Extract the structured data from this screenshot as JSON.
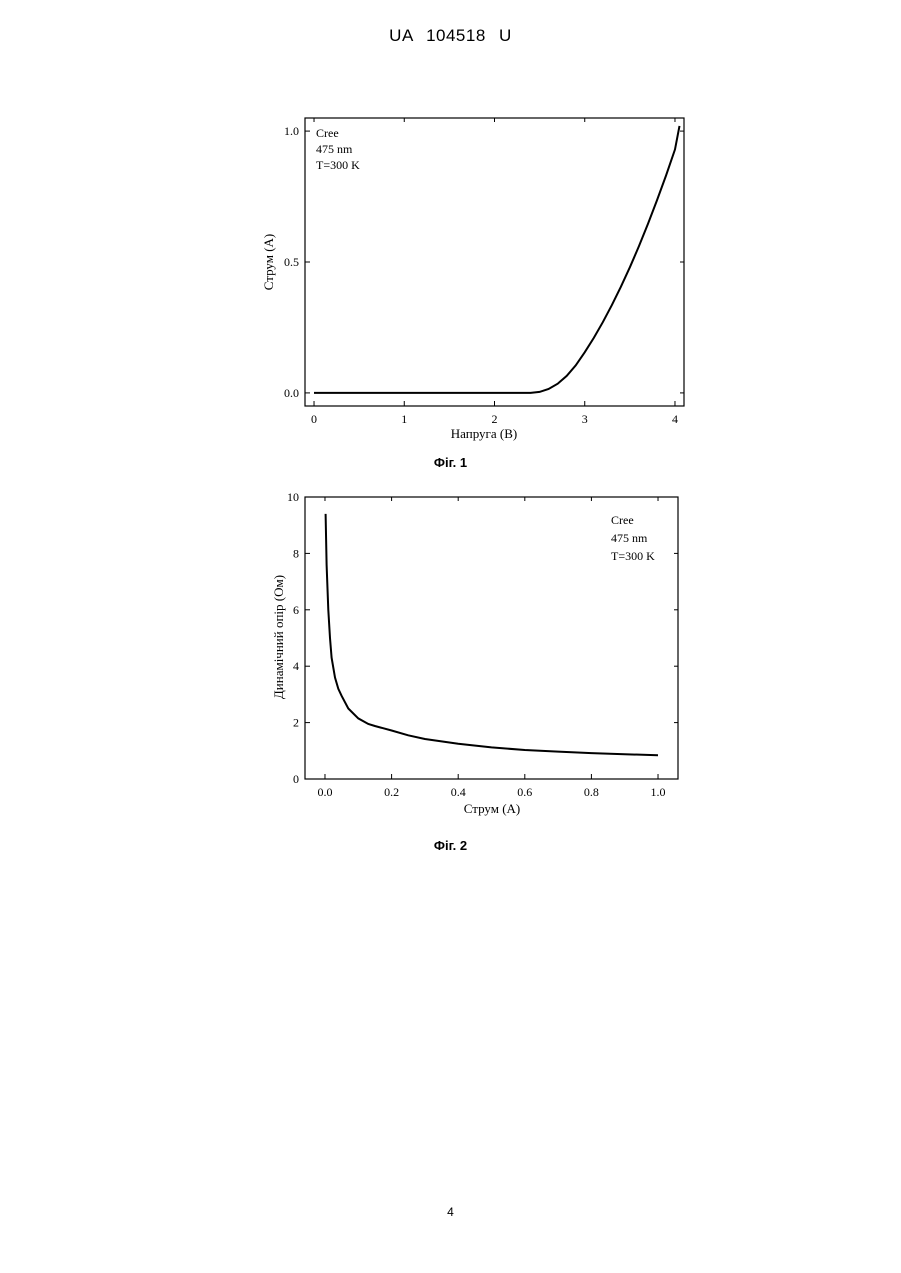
{
  "header": {
    "doc_number": "UA   104518   U"
  },
  "page_number": "4",
  "chart_data": [
    {
      "type": "line",
      "caption": "Фіг. 1",
      "xlabel": "Напруга (В)",
      "ylabel": "Струм (А)",
      "legend": [
        "Cree",
        "475 nm",
        "T=300 K"
      ],
      "legend_placement": "top-left",
      "xlim": [
        -0.1,
        4.1
      ],
      "ylim": [
        -0.05,
        1.05
      ],
      "x_ticks": [
        "0",
        "1",
        "2",
        "3",
        "4"
      ],
      "y_ticks": [
        "0.0",
        "0.5",
        "1.0"
      ],
      "grid": false,
      "series": [
        {
          "x": [
            0.0,
            0.5,
            1.0,
            1.5,
            2.0,
            2.4,
            2.5,
            2.6,
            2.7,
            2.8,
            2.9,
            3.0,
            3.1,
            3.2,
            3.3,
            3.4,
            3.5,
            3.6,
            3.7,
            3.8,
            3.9,
            4.0,
            4.05
          ],
          "values": [
            0.0,
            0.0,
            0.0,
            0.0,
            0.0,
            0.0,
            0.004,
            0.015,
            0.035,
            0.065,
            0.105,
            0.155,
            0.21,
            0.27,
            0.335,
            0.405,
            0.48,
            0.56,
            0.645,
            0.735,
            0.83,
            0.93,
            1.02
          ]
        }
      ]
    },
    {
      "type": "line",
      "caption": "Фіг. 2",
      "xlabel": "Струм (А)",
      "ylabel": "Динамічний опір (Ом)",
      "legend": [
        "Cree",
        "475 nm",
        "T=300 K"
      ],
      "legend_placement": "top-right",
      "xlim": [
        -0.06,
        1.06
      ],
      "ylim": [
        0,
        10
      ],
      "x_ticks": [
        "0.0",
        "0.2",
        "0.4",
        "0.6",
        "0.8",
        "1.0"
      ],
      "y_ticks": [
        "0",
        "2",
        "4",
        "6",
        "8",
        "10"
      ],
      "grid": false,
      "series": [
        {
          "x": [
            0.002,
            0.005,
            0.01,
            0.015,
            0.02,
            0.03,
            0.04,
            0.05,
            0.07,
            0.1,
            0.13,
            0.15,
            0.2,
            0.25,
            0.3,
            0.4,
            0.5,
            0.6,
            0.7,
            0.8,
            0.9,
            1.0
          ],
          "values": [
            9.4,
            7.6,
            6.0,
            5.0,
            4.3,
            3.6,
            3.2,
            2.95,
            2.5,
            2.15,
            1.95,
            1.88,
            1.72,
            1.55,
            1.42,
            1.25,
            1.12,
            1.03,
            0.97,
            0.92,
            0.88,
            0.84
          ]
        }
      ]
    }
  ]
}
